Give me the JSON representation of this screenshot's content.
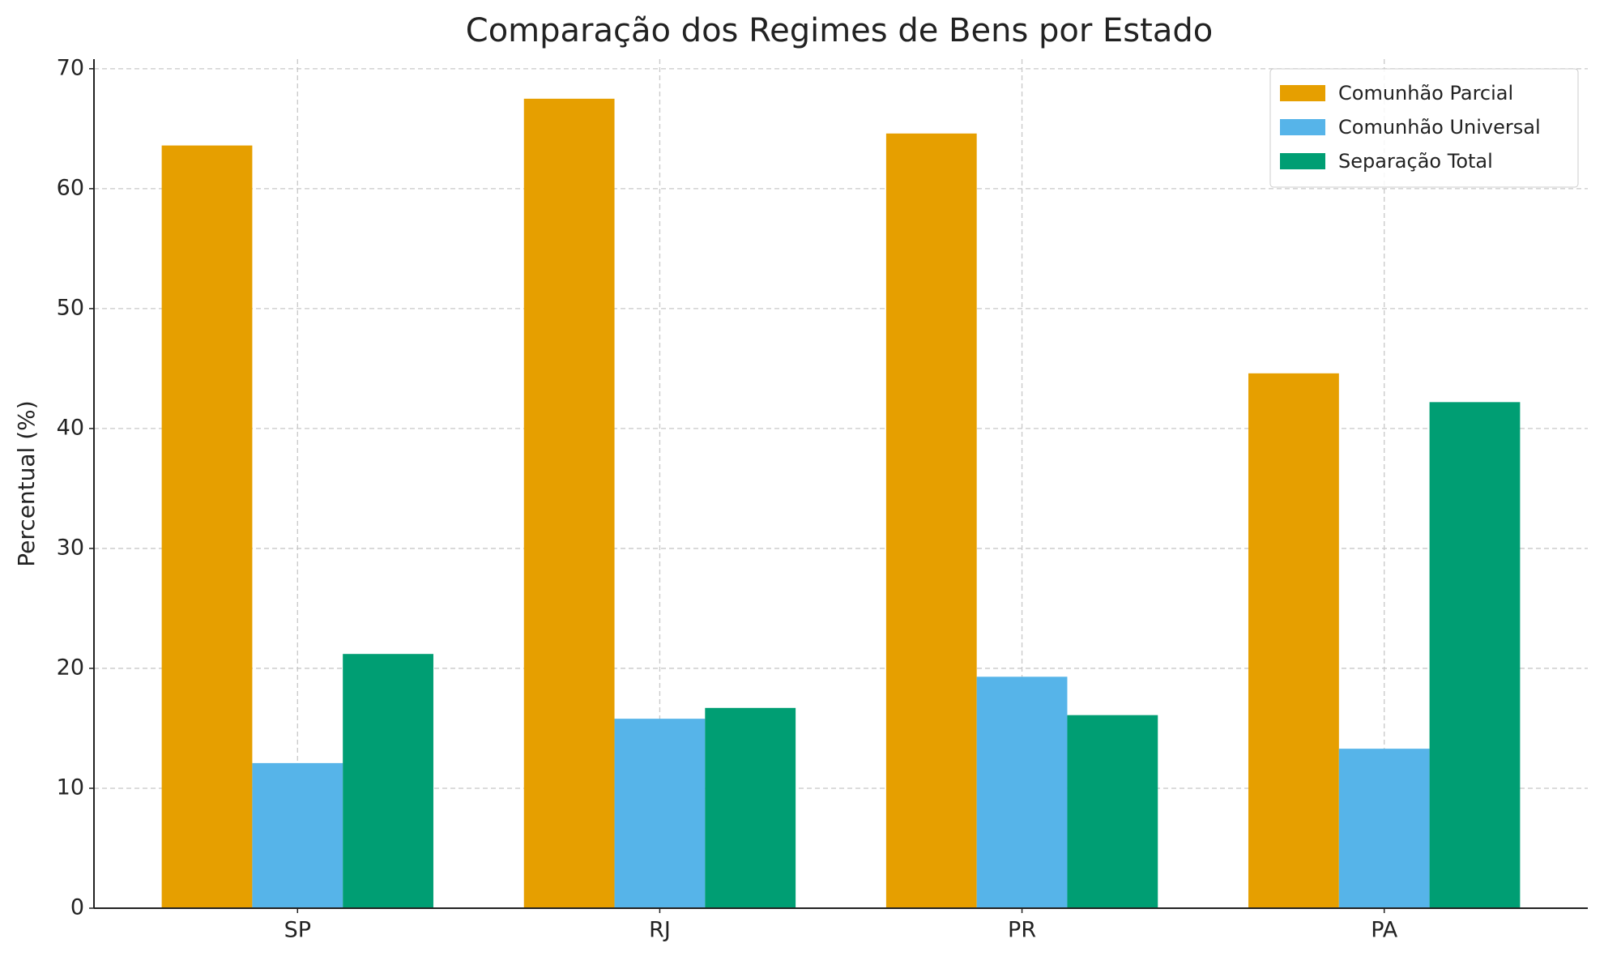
{
  "chart_data": {
    "type": "bar",
    "title": "Comparação dos Regimes de Bens por Estado",
    "y_label": "Percentual (%)",
    "categories": [
      "SP",
      "RJ",
      "PR",
      "PA"
    ],
    "series": [
      {
        "name": "Comunhão Parcial",
        "color": "#e69f00",
        "values": [
          63.6,
          67.5,
          64.6,
          44.6
        ]
      },
      {
        "name": "Comunhão Universal",
        "color": "#56b4e9",
        "values": [
          12.1,
          15.8,
          19.3,
          13.3
        ]
      },
      {
        "name": "Separação Total",
        "color": "#009e73",
        "values": [
          21.2,
          16.7,
          16.1,
          42.2
        ]
      }
    ],
    "ylim": [
      0,
      70.8
    ],
    "yticks": [
      0,
      10,
      20,
      30,
      40,
      50,
      60,
      70
    ],
    "grid": true,
    "legend": "upper right"
  }
}
